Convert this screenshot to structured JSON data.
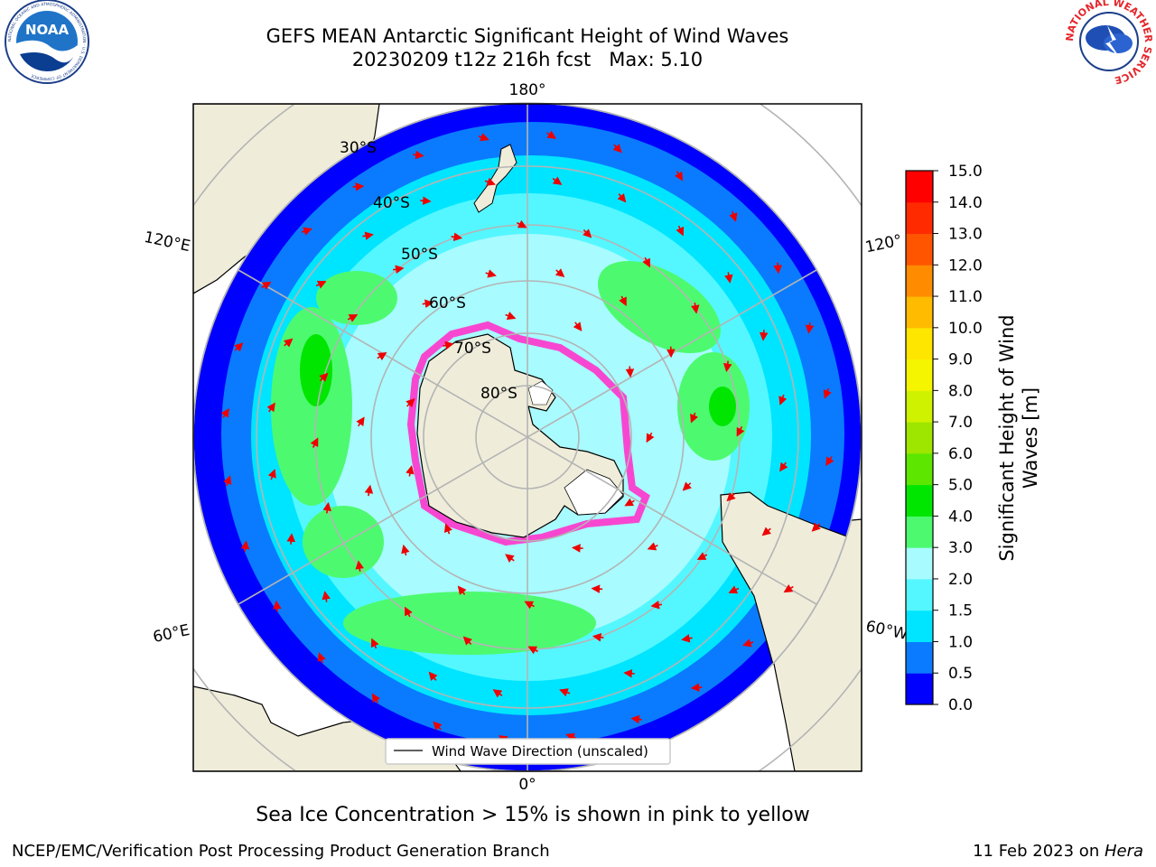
{
  "header": {
    "title_line1": "GEFS MEAN Antarctic Significant Height of Wind Waves",
    "title_line2": "20230209 t12z 216h fcst   Max: 5.10"
  },
  "logos": {
    "left": "NOAA",
    "left_ring": "NATIONAL OCEANIC AND ATMOSPHERIC ADMINISTRATION · U.S. DEPARTMENT OF COMMERCE",
    "right_ring": "NATIONAL WEATHER SERVICE"
  },
  "map": {
    "projection": "south-polar-stereographic",
    "lon_labels": [
      "180°",
      "120°E",
      "120°",
      "60°E",
      "60°W",
      "0°"
    ],
    "lat_labels": [
      "30°S",
      "40°S",
      "50°S",
      "60°S",
      "70°S",
      "80°S"
    ],
    "legend_label": "Wind Wave Direction (unscaled)",
    "colors": {
      "land": "#efedda",
      "grid": "#b4b4b4",
      "arrow": "#ee0000",
      "ice": "#ff33cc"
    }
  },
  "colorbar": {
    "label_line1": "Significant Height of Wind",
    "label_line2": "Waves [m]",
    "ticks": [
      "0.0",
      "0.5",
      "1.0",
      "1.5",
      "2.0",
      "3.0",
      "4.0",
      "5.0",
      "6.0",
      "7.0",
      "8.0",
      "9.0",
      "10.0",
      "11.0",
      "12.0",
      "13.0",
      "14.0",
      "15.0"
    ],
    "colors": [
      "#0000ff",
      "#0a7bff",
      "#00e5ff",
      "#54f7ff",
      "#a8fbff",
      "#4dfa6f",
      "#00e600",
      "#5ce600",
      "#9ee600",
      "#cff200",
      "#f5f500",
      "#ffe600",
      "#ffbb00",
      "#ff8c00",
      "#ff5500",
      "#ff2a00",
      "#ff0000"
    ]
  },
  "caption": "Sea Ice Concentration > 15% is shown in pink to yellow",
  "footer": {
    "left": "NCEP/EMC/Verification Post Processing Product Generation Branch",
    "right_prefix": "11 Feb 2023 on ",
    "right_italic": "Hera"
  }
}
